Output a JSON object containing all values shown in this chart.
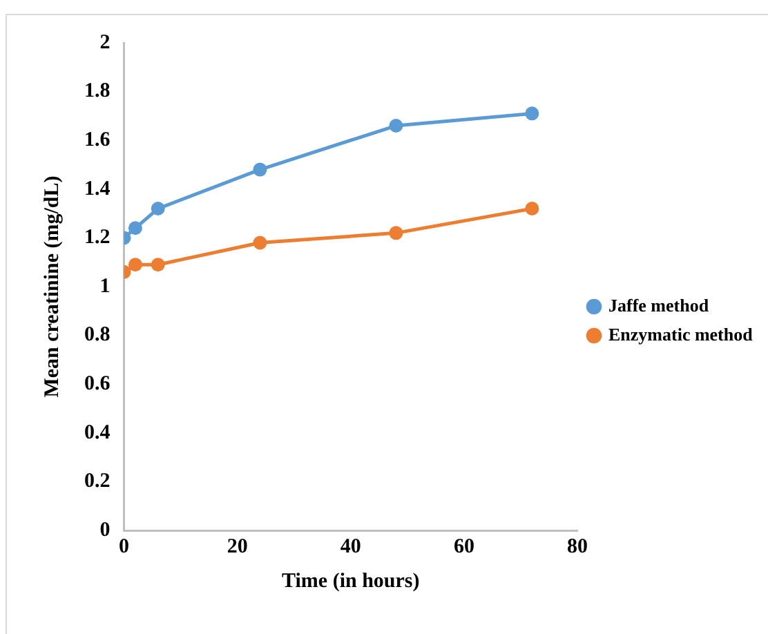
{
  "chart_data": {
    "type": "line",
    "xlabel": "Time (in hours)",
    "ylabel": "Mean creatinine (mg/dL)",
    "x": [
      0,
      2,
      6,
      24,
      48,
      72
    ],
    "series": [
      {
        "name": "Jaffe method",
        "color": "#5b9bd5",
        "values": [
          1.2,
          1.24,
          1.32,
          1.48,
          1.66,
          1.71
        ]
      },
      {
        "name": "Enzymatic method",
        "color": "#ed7d31",
        "values": [
          1.06,
          1.09,
          1.09,
          1.18,
          1.22,
          1.32
        ]
      }
    ],
    "xlim": [
      0,
      80
    ],
    "xticks": [
      0,
      20,
      40,
      60,
      80
    ],
    "ylim": [
      0,
      2
    ],
    "yticks": [
      0,
      {
        "value": 0.2,
        "label": "0.2"
      },
      {
        "value": 0.4,
        "label": "0.4"
      },
      {
        "value": 0.6,
        "label": "0.6"
      },
      {
        "value": 0.8,
        "label": "0.8"
      },
      1,
      {
        "value": 1.2,
        "label": "1.2"
      },
      {
        "value": 1.4,
        "label": "1.4"
      },
      {
        "value": 1.6,
        "label": "1.6"
      },
      {
        "value": 1.8,
        "label": "1.8"
      },
      2
    ],
    "grid": false,
    "legend": "right",
    "marker": "circle",
    "line_style": "solid"
  }
}
